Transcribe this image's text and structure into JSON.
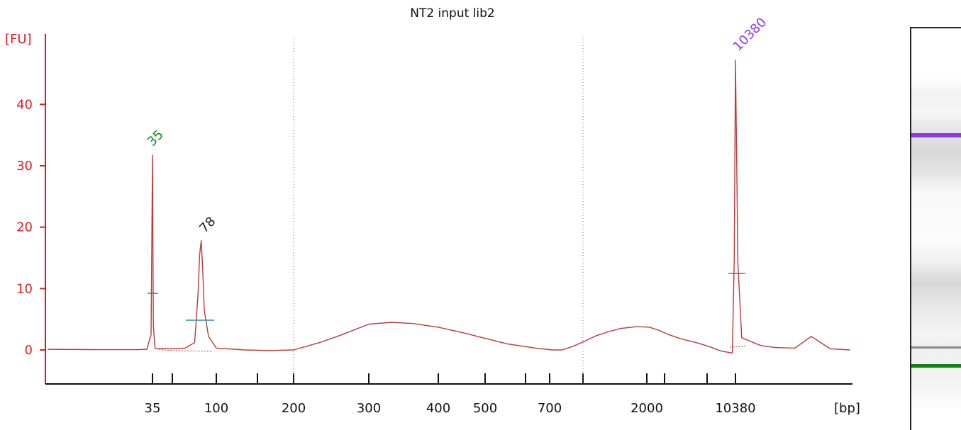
{
  "chart_data": {
    "type": "line",
    "title": "NT2 input lib2",
    "ylabel": "[FU]",
    "xlabel": "[bp]",
    "ylim": [
      -5,
      52
    ],
    "yticks": [
      0,
      10,
      20,
      30,
      40
    ],
    "xscale": "log",
    "xtick_labels": [
      "35",
      "100",
      "200",
      "300",
      "400",
      "500",
      "700",
      "2000",
      "10380"
    ],
    "grid": "two dotted vertical guide lines",
    "colors": {
      "axis": "#d81f1f",
      "trace": "#b83a3a",
      "lower_marker": "#128312",
      "upper_marker": "#8f38e6",
      "label_black": "#1a1a1a",
      "guide": "#6f70b9"
    },
    "peaks": [
      {
        "label": "35",
        "x": 35,
        "height": 31.7,
        "color": "green"
      },
      {
        "label": "78",
        "x": 78,
        "height": 17.8,
        "color": "black"
      },
      {
        "label": "10380",
        "x": 10380,
        "height": 47.2,
        "color": "purple"
      }
    ],
    "series": [
      {
        "x": [
          12,
          20,
          30,
          33,
          34.5,
          35,
          35.5,
          36.5,
          40,
          50,
          60,
          70,
          74,
          76,
          78,
          80,
          82,
          88,
          100,
          130,
          160,
          200,
          230,
          260,
          300,
          330,
          360,
          400,
          450,
          500,
          560,
          650,
          720,
          800,
          900,
          1000,
          1150,
          1300,
          1500,
          1800,
          2100,
          2500,
          3000,
          3800,
          5000,
          6500,
          8000,
          9800,
          10150,
          10380,
          10620,
          11000,
          11600,
          12600,
          13200,
          15000,
          18000,
          21000,
          25000,
          30000
        ],
        "values": [
          0.1,
          0.05,
          0.05,
          0.1,
          2.5,
          31.7,
          4.0,
          0.25,
          0.2,
          0.2,
          0.3,
          1.2,
          9.0,
          15.5,
          17.8,
          13.0,
          6.5,
          2.2,
          0.3,
          0.0,
          -0.1,
          0.0,
          1.2,
          2.5,
          4.2,
          4.5,
          4.3,
          3.7,
          2.8,
          1.9,
          1.0,
          0.3,
          0.0,
          0.0,
          0.6,
          1.3,
          2.3,
          2.9,
          3.5,
          3.8,
          3.7,
          3.2,
          2.5,
          1.8,
          1.2,
          0.5,
          -0.2,
          -0.5,
          15.0,
          47.2,
          14.0,
          2.0,
          1.6,
          1.0,
          0.7,
          0.4,
          0.3,
          2.2,
          0.2,
          0.0
        ]
      }
    ]
  }
}
